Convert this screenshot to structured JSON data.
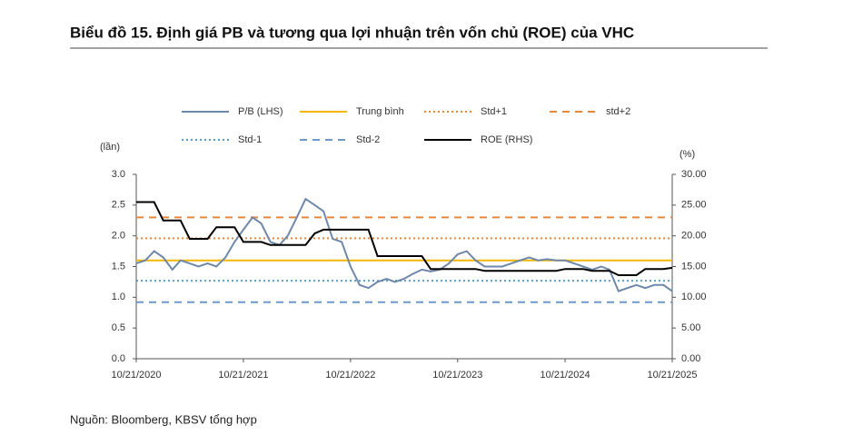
{
  "chart_data": {
    "type": "line",
    "title": "Biểu đồ 15. Định giá PB và tương qua lợi nhuận trên vốn chủ (ROE) của VHC",
    "y_label": "(lần)",
    "y2_label": "(%)",
    "source": "Nguồn: Bloomberg, KBSV tổng hợp",
    "x": [
      "10/21/2020",
      "11/21/2020",
      "12/21/2020",
      "01/21/2021",
      "02/21/2021",
      "03/21/2021",
      "04/21/2021",
      "05/21/2021",
      "06/21/2021",
      "07/21/2021",
      "08/21/2021",
      "09/21/2021",
      "10/21/2021",
      "11/21/2021",
      "12/21/2021",
      "01/21/2022",
      "02/21/2022",
      "03/21/2022",
      "04/21/2022",
      "05/21/2022",
      "06/21/2022",
      "07/21/2022",
      "08/21/2022",
      "09/21/2022",
      "10/21/2022",
      "11/21/2022",
      "12/21/2022",
      "01/21/2023",
      "02/21/2023",
      "03/21/2023",
      "04/21/2023",
      "05/21/2023",
      "06/21/2023",
      "07/21/2023",
      "08/21/2023",
      "09/21/2023",
      "10/21/2023",
      "11/21/2023",
      "12/21/2023",
      "01/21/2024",
      "02/21/2024",
      "03/21/2024",
      "04/21/2024",
      "05/21/2024",
      "06/21/2024",
      "07/21/2024",
      "08/21/2024",
      "09/21/2024",
      "10/21/2024",
      "11/21/2024",
      "12/21/2024",
      "01/21/2025",
      "02/21/2025",
      "03/21/2025",
      "04/21/2025",
      "05/21/2025",
      "06/21/2025",
      "07/21/2025",
      "08/21/2025",
      "09/21/2025",
      "10/21/2025"
    ],
    "xlim": [
      "10/21/2020",
      "10/21/2025"
    ],
    "xticks": [
      "10/21/2020",
      "10/21/2021",
      "10/21/2022",
      "10/21/2023",
      "10/21/2024",
      "10/21/2025"
    ],
    "ylim": [
      0,
      3
    ],
    "yticks": [
      {
        "value": 0,
        "label": "0.0"
      },
      {
        "value": 0.5,
        "label": "0.5"
      },
      {
        "value": 1,
        "label": "1.0"
      },
      {
        "value": 1.5,
        "label": "1.5"
      },
      {
        "value": 2,
        "label": "2.0"
      },
      {
        "value": 2.5,
        "label": "2.5"
      },
      {
        "value": 3,
        "label": "3.0"
      }
    ],
    "y2lim": [
      0,
      30
    ],
    "y2ticks": [
      {
        "value": 0,
        "label": "0.00"
      },
      {
        "value": 5,
        "label": "5.00"
      },
      {
        "value": 10,
        "label": "10.00"
      },
      {
        "value": 15,
        "label": "15.00"
      },
      {
        "value": 20,
        "label": "20.00"
      },
      {
        "value": 25,
        "label": "25.00"
      },
      {
        "value": 30,
        "label": "30.00"
      }
    ],
    "series": [
      {
        "name": "P/B (LHS)",
        "color": "#6f88a9",
        "dash": "solid",
        "values": [
          1.55,
          1.6,
          1.75,
          1.65,
          1.45,
          1.6,
          1.55,
          1.5,
          1.55,
          1.5,
          1.65,
          1.9,
          2.1,
          2.3,
          2.2,
          1.9,
          1.85,
          2.0,
          2.3,
          2.6,
          2.5,
          2.4,
          1.95,
          1.9,
          1.5,
          1.2,
          1.15,
          1.25,
          1.3,
          1.25,
          1.3,
          1.38,
          1.45,
          1.42,
          1.45,
          1.55,
          1.7,
          1.75,
          1.6,
          1.5,
          1.5,
          1.5,
          1.55,
          1.6,
          1.65,
          1.6,
          1.62,
          1.6,
          1.6,
          1.55,
          1.5,
          1.45,
          1.5,
          1.45,
          1.1,
          1.15,
          1.2,
          1.15,
          1.2,
          1.2,
          1.1
        ]
      },
      {
        "name": "Trung bình",
        "color": "#f2b705",
        "dash": "solid",
        "value": 1.6
      },
      {
        "name": "Std+1",
        "color": "#e8863a",
        "dash": "dotted",
        "value": 1.96
      },
      {
        "name": "std+2",
        "color": "#e8863a",
        "dash": "dashed",
        "value": 2.3
      },
      {
        "name": "Std-1",
        "color": "#5a9bc9",
        "dash": "dotted",
        "value": 1.27
      },
      {
        "name": "Std-2",
        "color": "#6f98c9",
        "dash": "dashed",
        "value": 0.92
      },
      {
        "name": "ROE (RHS)",
        "color": "#000000",
        "dash": "solid",
        "axis": "y2",
        "values": [
          25.5,
          25.5,
          25.5,
          22.5,
          22.5,
          22.5,
          19.5,
          19.5,
          19.5,
          21.4,
          21.4,
          21.4,
          19,
          19,
          19,
          18.5,
          18.5,
          18.5,
          18.5,
          18.5,
          20.4,
          21,
          21,
          21,
          21,
          21,
          21,
          16.7,
          16.7,
          16.7,
          16.7,
          16.7,
          16.7,
          14.6,
          14.6,
          14.6,
          14.6,
          14.6,
          14.6,
          14.3,
          14.3,
          14.3,
          14.3,
          14.3,
          14.3,
          14.3,
          14.3,
          14.3,
          14.6,
          14.6,
          14.6,
          14.3,
          14.3,
          14.3,
          13.6,
          13.6,
          13.6,
          14.6,
          14.6,
          14.6,
          14.8
        ]
      }
    ]
  }
}
